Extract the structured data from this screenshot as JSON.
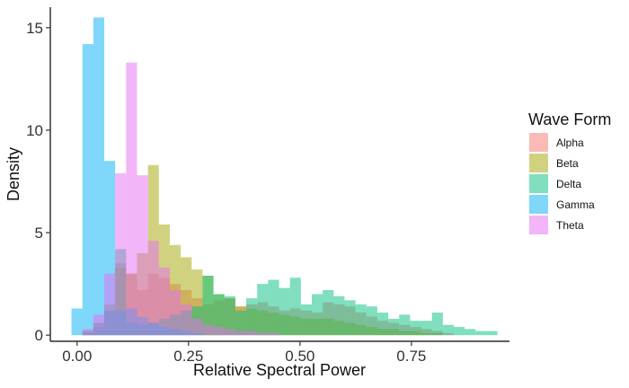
{
  "chart_data": {
    "type": "histogram",
    "title": "",
    "xlabel": "Relative Spectral Power",
    "ylabel": "Density",
    "xlim": [
      -0.06,
      0.97
    ],
    "ylim": [
      -0.3,
      16.0
    ],
    "x_ticks": [
      0.0,
      0.25,
      0.5,
      0.75
    ],
    "x_tick_labels": [
      "0.00",
      "0.25",
      "0.50",
      "0.75"
    ],
    "y_ticks": [
      0,
      5,
      10,
      15
    ],
    "y_tick_labels": [
      "0",
      "5",
      "10",
      "15"
    ],
    "grid": false,
    "bin_width": 0.0245,
    "first_bin_left": -0.0125,
    "bar_opacity": 0.5,
    "legend": {
      "title": "Wave Form",
      "position": "right"
    },
    "series": [
      {
        "name": "Alpha",
        "color": "#F8766D",
        "values": [
          0,
          0.2,
          0.6,
          1.2,
          3.5,
          3.0,
          2.2,
          3.0,
          2.8,
          2.5,
          2.2,
          1.8,
          1.5,
          1.7,
          1.8,
          1.4,
          1.5,
          1.6,
          1.4,
          1.2,
          1.3,
          1.2,
          1.1,
          1.6,
          1.5,
          1.4,
          1.1,
          0.9,
          0.7,
          0.6,
          0.5,
          0.4,
          0.3,
          0.2,
          0.1,
          0,
          0,
          0,
          0
        ]
      },
      {
        "name": "Beta",
        "color": "#A3A500",
        "values": [
          0,
          0.2,
          0.6,
          1.5,
          3.3,
          3.0,
          4.0,
          8.3,
          5.4,
          4.4,
          3.8,
          3.2,
          2.9,
          2.0,
          1.8,
          1.4,
          1.3,
          1.2,
          1.1,
          1.0,
          0.9,
          0.8,
          0.8,
          0.8,
          0.7,
          0.6,
          0.5,
          0.4,
          0.3,
          0.3,
          0.2,
          0.2,
          0.1,
          0.1,
          0,
          0,
          0,
          0,
          0
        ]
      },
      {
        "name": "Delta",
        "color": "#00BF7D",
        "values": [
          0,
          0.1,
          0.4,
          1.2,
          4.2,
          0.6,
          0.5,
          0.6,
          0.8,
          1.0,
          1.2,
          1.4,
          2.9,
          2.0,
          1.9,
          1.2,
          1.8,
          2.5,
          2.7,
          2.3,
          2.8,
          1.5,
          2.0,
          2.2,
          1.9,
          1.7,
          1.5,
          1.4,
          1.1,
          0.8,
          1.0,
          0.7,
          0.7,
          1.1,
          0.5,
          0.4,
          0.3,
          0.2,
          0.2
        ]
      },
      {
        "name": "Gamma",
        "color": "#00B0F6",
        "values": [
          1.3,
          14.2,
          15.5,
          8.5,
          1.2,
          1.3,
          0.9,
          0.6,
          0.4,
          0.3,
          0.2,
          0.1,
          0,
          0,
          0,
          0,
          0,
          0,
          0,
          0,
          0,
          0,
          0,
          0,
          0,
          0,
          0,
          0,
          0,
          0,
          0,
          0,
          0,
          0,
          0,
          0,
          0,
          0,
          0
        ]
      },
      {
        "name": "Theta",
        "color": "#E76BF3",
        "values": [
          0,
          0.3,
          1.0,
          3.0,
          7.9,
          13.3,
          7.8,
          4.6,
          3.3,
          2.2,
          1.5,
          0.8,
          0.5,
          0.4,
          0.3,
          0.2,
          0.2,
          0.1,
          0.1,
          0,
          0,
          0,
          0,
          0,
          0,
          0,
          0,
          0,
          0,
          0,
          0,
          0,
          0,
          0,
          0,
          0,
          0,
          0,
          0
        ]
      }
    ]
  }
}
